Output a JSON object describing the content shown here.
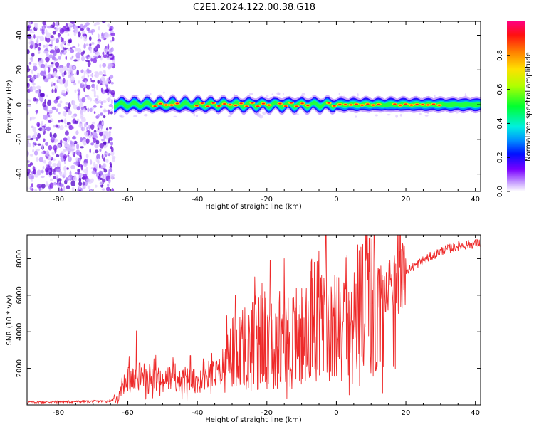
{
  "figure": {
    "title": "C2E1.2024.122.00.38.G18"
  },
  "chart_data": [
    {
      "type": "heatmap",
      "xlabel": "Height of straight line (km)",
      "ylabel": "Frequency (Hz)",
      "xlim": [
        -89,
        41.5
      ],
      "ylim": [
        -50,
        48
      ],
      "xticks": [
        -80,
        -60,
        -40,
        -20,
        0,
        20,
        40
      ],
      "yticks": [
        -40,
        -20,
        0,
        20,
        40
      ],
      "colorbar": {
        "label": "Normalized spectral amplitude",
        "range": [
          0.0,
          1.0
        ],
        "ticks": [
          0.0,
          0.2,
          0.4,
          0.6,
          0.8
        ]
      },
      "features": {
        "noise_region_x": [
          -89,
          -64
        ],
        "signal_center_frequency": 0,
        "signal_start_x": -64,
        "signal_band_halfwidth_hz": [
          2,
          4
        ],
        "peak_segments_x": [
          [
            -53,
            -46
          ],
          [
            -41,
            -20
          ],
          [
            -17,
            -8
          ],
          [
            -3,
            12
          ],
          [
            16,
            30
          ]
        ]
      }
    },
    {
      "type": "line",
      "xlabel": "Height of straight line (km)",
      "ylabel": "SNR (10 * v/v)",
      "xlim": [
        -89,
        41.5
      ],
      "ylim": [
        0,
        9300
      ],
      "xticks": [
        -80,
        -60,
        -40,
        -20,
        0,
        20,
        40
      ],
      "yticks": [
        2000,
        4000,
        6000,
        8000
      ],
      "color": "#ee2a2a",
      "trend": {
        "x": [
          -89,
          -66,
          -63,
          -60,
          -55,
          -50,
          -45,
          -40,
          -35,
          -30,
          -25,
          -20,
          -15,
          -10,
          -5,
          0,
          5,
          10,
          15,
          20,
          25,
          30,
          35,
          41.5
        ],
        "y": [
          150,
          200,
          350,
          1400,
          1700,
          1300,
          1500,
          1250,
          1700,
          3100,
          3300,
          3700,
          3400,
          4200,
          4800,
          4200,
          5000,
          5800,
          6300,
          7300,
          7900,
          8400,
          8700,
          8850
        ]
      },
      "spikes": {
        "x": [
          -57.5,
          -42,
          -29,
          -23.5,
          -19,
          -15,
          -3,
          6.5
        ],
        "y": [
          4050,
          2700,
          6000,
          7000,
          7900,
          8000,
          9300,
          8450
        ]
      }
    }
  ]
}
